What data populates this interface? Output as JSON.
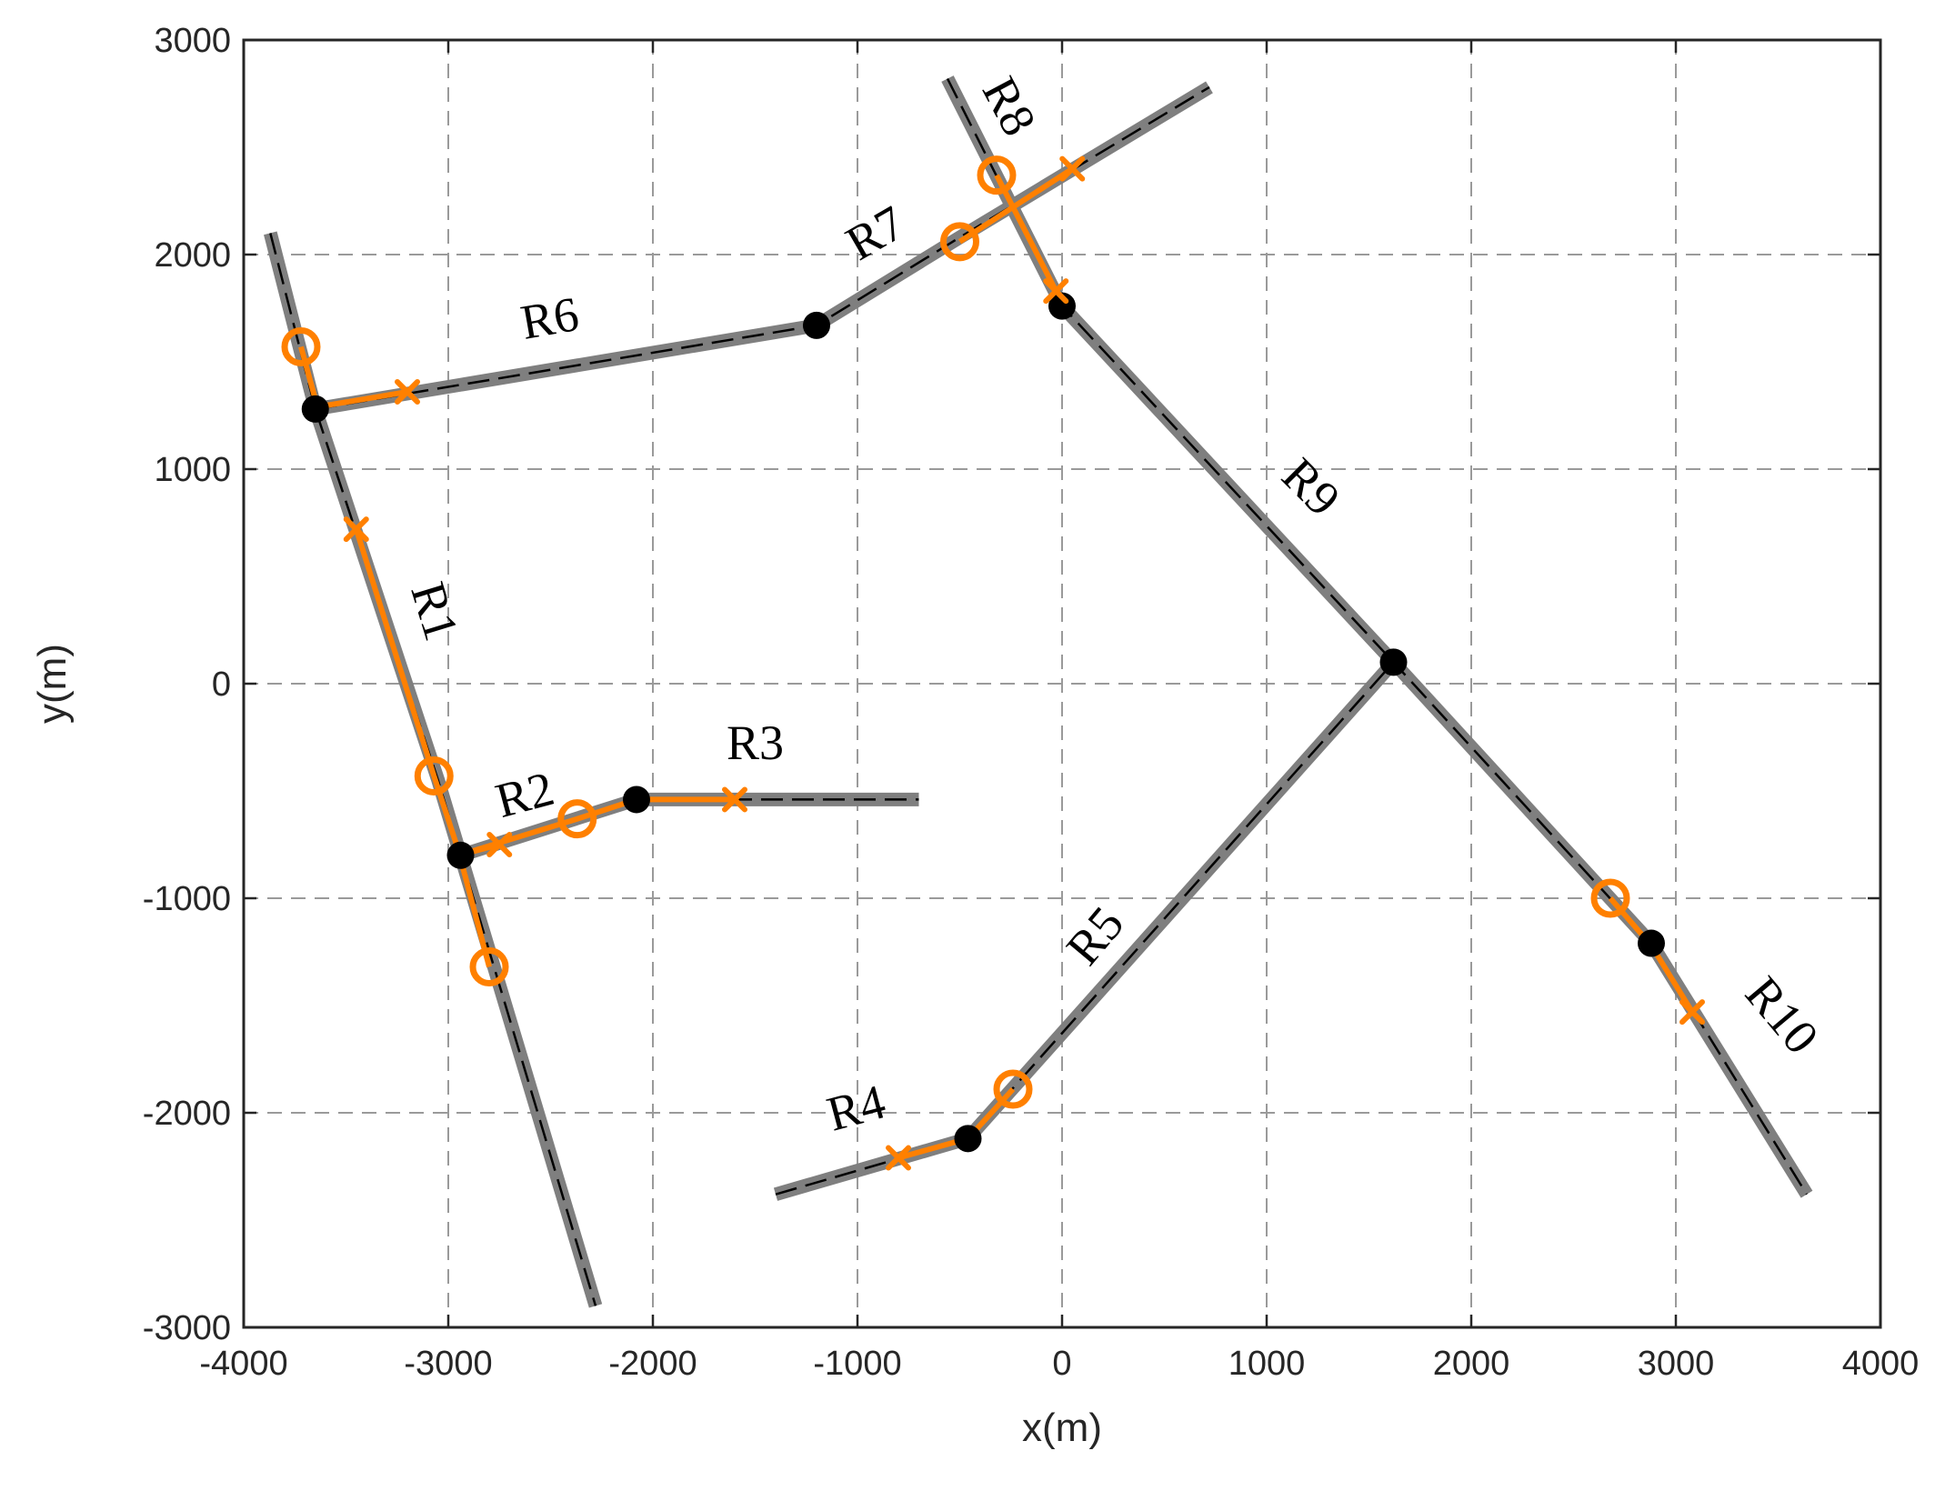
{
  "chart_data": {
    "type": "line",
    "title": "",
    "xlabel": "x(m)",
    "ylabel": "y(m)",
    "xlim": [
      -4000,
      4000
    ],
    "ylim": [
      -3000,
      3000
    ],
    "xticks": [
      -4000,
      -3000,
      -2000,
      -1000,
      0,
      1000,
      2000,
      3000,
      4000
    ],
    "yticks": [
      -3000,
      -2000,
      -1000,
      0,
      1000,
      2000,
      3000
    ],
    "xtick_labels": [
      "-4000",
      "-3000",
      "-2000",
      "-1000",
      "0",
      "1000",
      "2000",
      "3000",
      "4000"
    ],
    "ytick_labels": [
      "-3000",
      "-2000",
      "-1000",
      "0",
      "1000",
      "2000",
      "3000"
    ],
    "grid": true,
    "colors": {
      "road": "#7f7f7f",
      "centerline": "#000000",
      "path": "#ff8000",
      "node": "#000000",
      "grid": "#9a9a9a",
      "axes": "#262626"
    },
    "roads": [
      {
        "x": [
          -3870,
          -3650,
          -3050,
          -2940,
          -2280
        ],
        "y": [
          2100,
          1280,
          -450,
          -800,
          -2900
        ]
      },
      {
        "x": [
          -2940,
          -2080,
          -700
        ],
        "y": [
          -800,
          -540,
          -540
        ]
      },
      {
        "x": [
          -1400,
          -460,
          1620,
          2880,
          3640
        ],
        "y": [
          -2380,
          -2120,
          100,
          -1210,
          -2380
        ]
      },
      {
        "x": [
          -3650,
          -1200,
          -500,
          720
        ],
        "y": [
          1280,
          1670,
          2080,
          2780
        ]
      },
      {
        "x": [
          -560,
          0,
          1620
        ],
        "y": [
          2820,
          1760,
          100
        ]
      }
    ],
    "nodes": [
      {
        "x": -3650,
        "y": 1280
      },
      {
        "x": -2940,
        "y": -800
      },
      {
        "x": -2080,
        "y": -540
      },
      {
        "x": -1200,
        "y": 1670
      },
      {
        "x": 0,
        "y": 1760
      },
      {
        "x": 1620,
        "y": 100
      },
      {
        "x": -460,
        "y": -2120
      },
      {
        "x": 2880,
        "y": -1210
      }
    ],
    "paths": [
      {
        "x": [
          -3720,
          -3640,
          -3200
        ],
        "y": [
          1570,
          1290,
          1360
        ]
      },
      {
        "x": [
          -3450,
          -3070
        ],
        "y": [
          720,
          -430
        ]
      },
      {
        "x": [
          -3070,
          -2950,
          -2800
        ],
        "y": [
          -430,
          -780,
          -1320
        ]
      },
      {
        "x": [
          -2750,
          -2950,
          -2370,
          -2080,
          -1600
        ],
        "y": [
          -750,
          -800,
          -630,
          -540,
          -540
        ]
      },
      {
        "x": [
          -800,
          -460,
          -240
        ],
        "y": [
          -2210,
          -2120,
          -1890
        ]
      },
      {
        "x": [
          -500,
          50
        ],
        "y": [
          2060,
          2400
        ]
      },
      {
        "x": [
          -320,
          -30
        ],
        "y": [
          2370,
          1830
        ]
      },
      {
        "x": [
          2680,
          2880,
          3080
        ],
        "y": [
          -1000,
          -1220,
          -1530
        ]
      }
    ],
    "circle_markers": [
      {
        "x": -3720,
        "y": 1570
      },
      {
        "x": -3070,
        "y": -430
      },
      {
        "x": -2800,
        "y": -1320
      },
      {
        "x": -2370,
        "y": -630
      },
      {
        "x": -240,
        "y": -1890
      },
      {
        "x": -500,
        "y": 2060
      },
      {
        "x": -320,
        "y": 2370
      },
      {
        "x": 2680,
        "y": -1000
      }
    ],
    "cross_markers": [
      {
        "x": -3200,
        "y": 1360
      },
      {
        "x": -3450,
        "y": 720
      },
      {
        "x": -2750,
        "y": -750
      },
      {
        "x": -1600,
        "y": -540
      },
      {
        "x": -800,
        "y": -2210
      },
      {
        "x": 50,
        "y": 2400
      },
      {
        "x": -30,
        "y": 1830
      },
      {
        "x": 3080,
        "y": -1530
      }
    ],
    "labels": [
      {
        "text": "R1",
        "x": -3090,
        "y": 330,
        "angle": 73
      },
      {
        "text": "R2",
        "x": -2620,
        "y": -540,
        "angle": -15
      },
      {
        "text": "R3",
        "x": -1500,
        "y": -300,
        "angle": 0
      },
      {
        "text": "R4",
        "x": -1000,
        "y": -2000,
        "angle": -15
      },
      {
        "text": "R5",
        "x": 180,
        "y": -1190,
        "angle": -50
      },
      {
        "text": "R6",
        "x": -2500,
        "y": 1680,
        "angle": -10
      },
      {
        "text": "R7",
        "x": -900,
        "y": 2080,
        "angle": -30
      },
      {
        "text": "R8",
        "x": -280,
        "y": 2680,
        "angle": 62
      },
      {
        "text": "R9",
        "x": 1200,
        "y": 900,
        "angle": 45
      },
      {
        "text": "R10",
        "x": 3500,
        "y": -1560,
        "angle": 50
      }
    ]
  }
}
